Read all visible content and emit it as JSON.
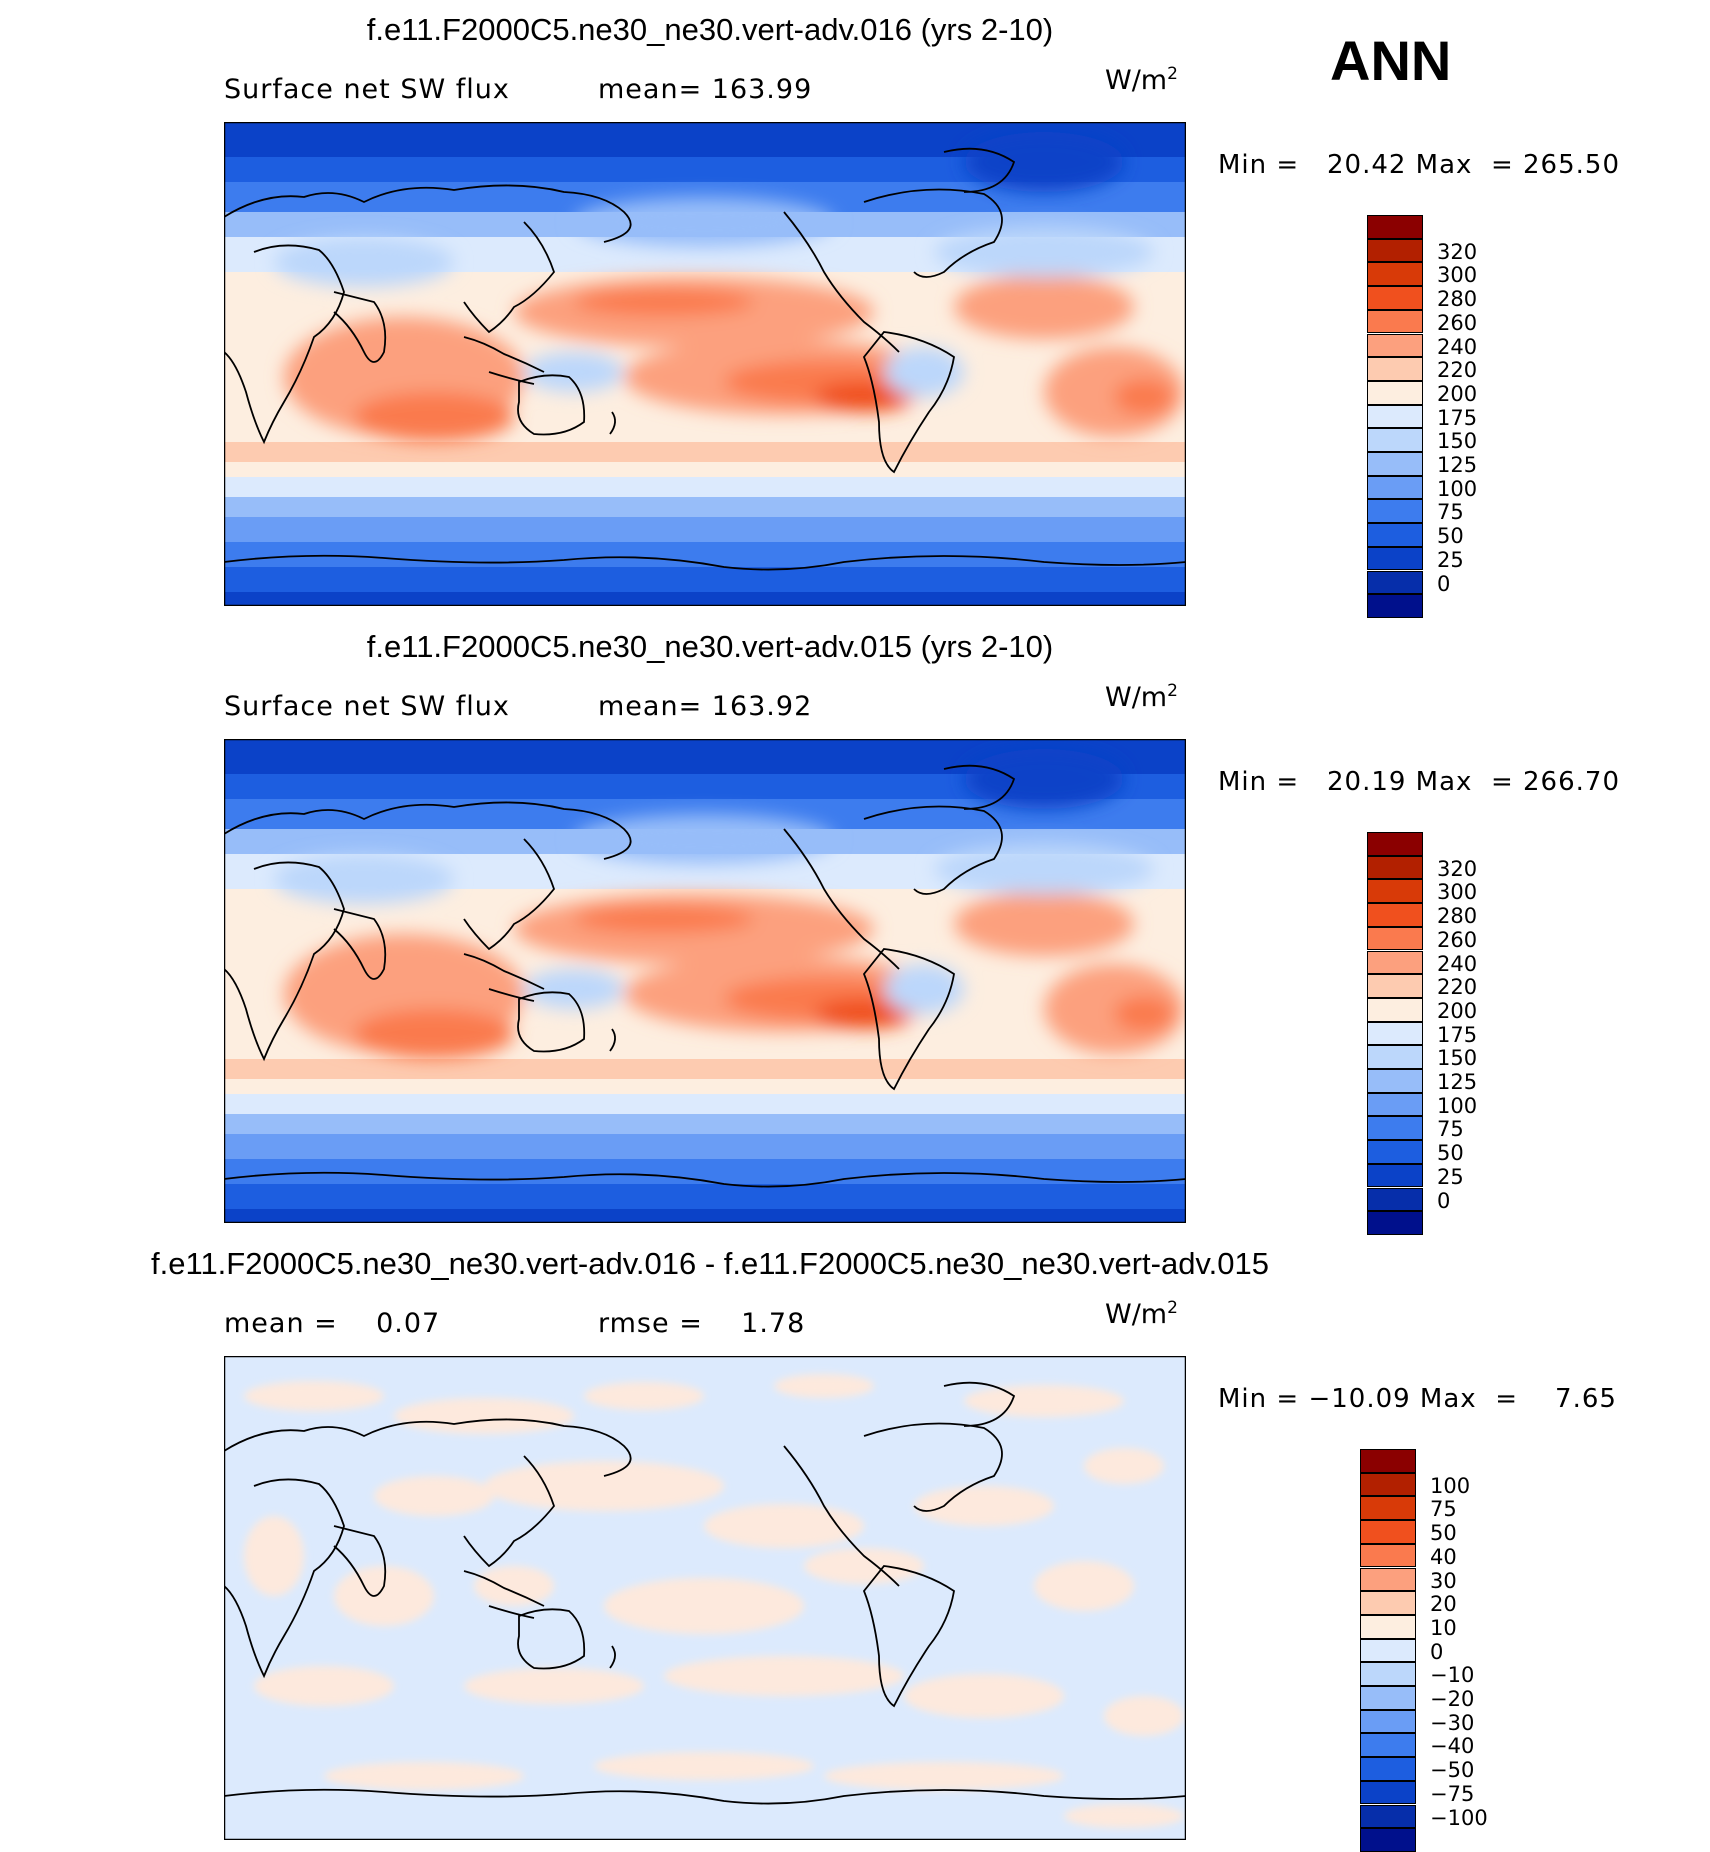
{
  "season": "ANN",
  "panels": [
    {
      "title": "f.e11.F2000C5.ne30_ne30.vert-adv.016 (yrs 2-10)",
      "left_text": "Surface net SW flux",
      "right_text": "mean= 163.99",
      "units": "W/m",
      "units_sup": "2",
      "minmax": "Min =   20.42 Max  = 265.50",
      "type": "abs",
      "colorbar": {
        "colors": [
          "#8b0000",
          "#b22000",
          "#d83a08",
          "#f0501e",
          "#fa7a4e",
          "#fca07e",
          "#fdcbb0",
          "#fdeee0",
          "#dceafd",
          "#bcd7fb",
          "#97bdf9",
          "#6a9df5",
          "#3d7cee",
          "#1d5ee0",
          "#0b42c8",
          "#062eaa",
          "#00108c"
        ],
        "labels": [
          "320",
          "300",
          "280",
          "260",
          "240",
          "220",
          "200",
          "175",
          "150",
          "125",
          "100",
          "75",
          "50",
          "25",
          "0"
        ]
      }
    },
    {
      "title": "f.e11.F2000C5.ne30_ne30.vert-adv.015 (yrs 2-10)",
      "left_text": "Surface net SW flux",
      "right_text": "mean= 163.92",
      "units": "W/m",
      "units_sup": "2",
      "minmax": "Min =   20.19 Max  = 266.70",
      "type": "abs",
      "colorbar": {
        "colors": [
          "#8b0000",
          "#b22000",
          "#d83a08",
          "#f0501e",
          "#fa7a4e",
          "#fca07e",
          "#fdcbb0",
          "#fdeee0",
          "#dceafd",
          "#bcd7fb",
          "#97bdf9",
          "#6a9df5",
          "#3d7cee",
          "#1d5ee0",
          "#0b42c8",
          "#062eaa",
          "#00108c"
        ],
        "labels": [
          "320",
          "300",
          "280",
          "260",
          "240",
          "220",
          "200",
          "175",
          "150",
          "125",
          "100",
          "75",
          "50",
          "25",
          "0"
        ]
      }
    },
    {
      "title": "f.e11.F2000C5.ne30_ne30.vert-adv.016 - f.e11.F2000C5.ne30_ne30.vert-adv.015",
      "left_text": "mean =    0.07",
      "right_text": "rmse =    1.78",
      "units": "W/m",
      "units_sup": "2",
      "minmax": "Min = −10.09 Max  =    7.65",
      "type": "diff",
      "colorbar": {
        "colors": [
          "#8b0000",
          "#b22000",
          "#d83a08",
          "#f0501e",
          "#fa7a4e",
          "#fca07e",
          "#fdcbb0",
          "#fdeee0",
          "#dceafd",
          "#bcd7fb",
          "#97bdf9",
          "#6a9df5",
          "#3d7cee",
          "#1d5ee0",
          "#0b42c8",
          "#062eaa",
          "#00108c"
        ],
        "labels": [
          "100",
          "75",
          "50",
          "40",
          "30",
          "20",
          "10",
          "0",
          "−10",
          "−20",
          "−30",
          "−40",
          "−50",
          "−75",
          "−100"
        ]
      }
    }
  ]
}
